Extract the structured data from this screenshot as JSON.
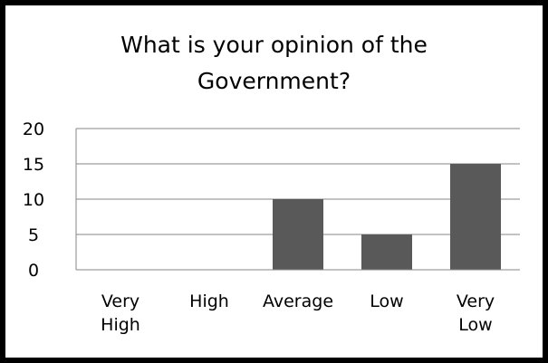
{
  "chart_data": {
    "type": "bar",
    "title": "What is your opinion of the Government?",
    "categories": [
      "Very High",
      "High",
      "Average",
      "Low",
      "Very Low"
    ],
    "values": [
      0,
      0,
      10,
      5,
      15
    ],
    "ylim": [
      0,
      20
    ],
    "yticks": [
      0,
      5,
      10,
      15,
      20
    ],
    "xlabel": "",
    "ylabel": "",
    "grid": true,
    "legend": "none",
    "colors": {
      "bar": "#595959",
      "grid": "#868686",
      "axis": "#868686",
      "border": "#000000"
    }
  }
}
